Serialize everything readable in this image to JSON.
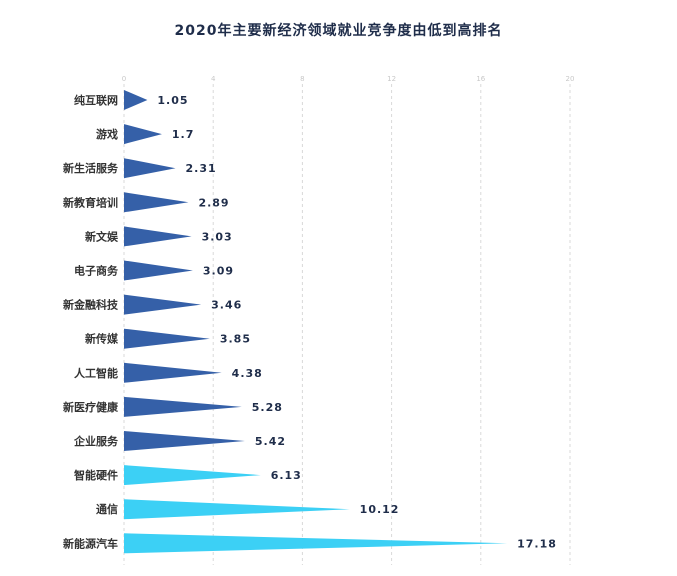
{
  "chart_data": {
    "type": "bar",
    "title": "2020年主要新经济领域就业竞争度由低到高排名",
    "xlim": [
      0,
      20
    ],
    "xticks": [
      0,
      4,
      8,
      12,
      16,
      20
    ],
    "grid": true,
    "categories": [
      "纯互联网",
      "游戏",
      "新生活服务",
      "新教育培训",
      "新文娱",
      "电子商务",
      "新金融科技",
      "新传媒",
      "人工智能",
      "新医疗健康",
      "企业服务",
      "智能硬件",
      "通信",
      "新能源汽车"
    ],
    "values": [
      1.05,
      1.7,
      2.31,
      2.89,
      3.03,
      3.09,
      3.46,
      3.85,
      4.38,
      5.28,
      5.42,
      6.13,
      10.12,
      17.18
    ],
    "value_labels": [
      "1.05",
      "1.7",
      "2.31",
      "2.89",
      "3.03",
      "3.09",
      "3.46",
      "3.85",
      "4.38",
      "5.28",
      "5.42",
      "6.13",
      "10.12",
      "17.18"
    ],
    "colors": [
      "#3560a8",
      "#3560a8",
      "#3560a8",
      "#3560a8",
      "#3560a8",
      "#3560a8",
      "#3560a8",
      "#3560a8",
      "#3560a8",
      "#3560a8",
      "#3560a8",
      "#3cd0f5",
      "#3cd0f5",
      "#3cd0f5"
    ]
  }
}
